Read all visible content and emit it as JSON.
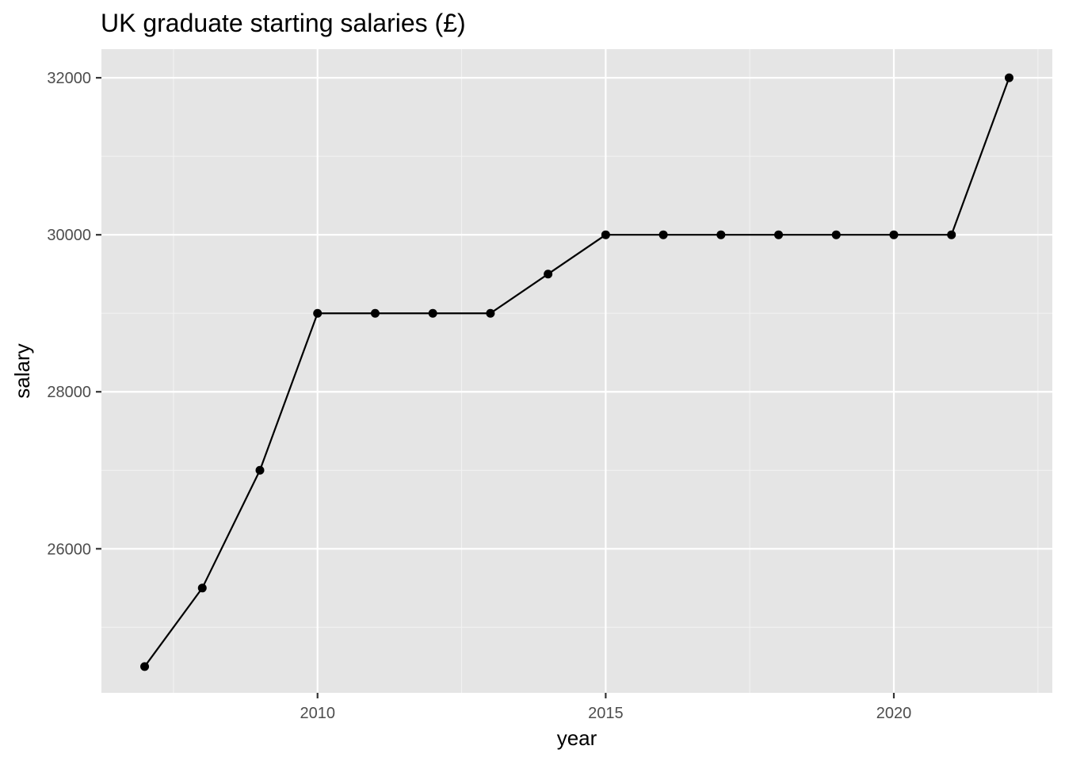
{
  "chart_data": {
    "type": "line",
    "title": "UK graduate starting salaries (£)",
    "xlabel": "year",
    "ylabel": "salary",
    "x": [
      2007,
      2008,
      2009,
      2010,
      2011,
      2012,
      2013,
      2014,
      2015,
      2016,
      2017,
      2018,
      2019,
      2020,
      2021,
      2022
    ],
    "series": [
      {
        "values": [
          24500,
          25500,
          27000,
          29000,
          29000,
          29000,
          29000,
          29500,
          30000,
          30000,
          30000,
          30000,
          30000,
          30000,
          30000,
          32000
        ]
      }
    ],
    "xlim": [
      2006.25,
      2022.75
    ],
    "ylim": [
      24165,
      32365
    ],
    "x_ticks": [
      2010,
      2015,
      2020
    ],
    "x_tick_labels": [
      "2010",
      "2015",
      "2020"
    ],
    "x_minor_ticks": [
      2007.5,
      2012.5,
      2017.5,
      2022.5
    ],
    "y_ticks": [
      26000,
      28000,
      30000,
      32000
    ],
    "y_tick_labels": [
      "26000",
      "28000",
      "30000",
      "32000"
    ],
    "y_minor_ticks": [
      25000,
      27000,
      29000,
      31000
    ],
    "grid": true,
    "legend": "none",
    "colors": {
      "panel_background": "#e5e5e5",
      "grid_major": "#ffffff",
      "grid_minor": "#f2f2f2",
      "line": "#000000",
      "point": "#000000",
      "tick_label": "#4d4d4d",
      "tick_mark": "#333333"
    }
  }
}
